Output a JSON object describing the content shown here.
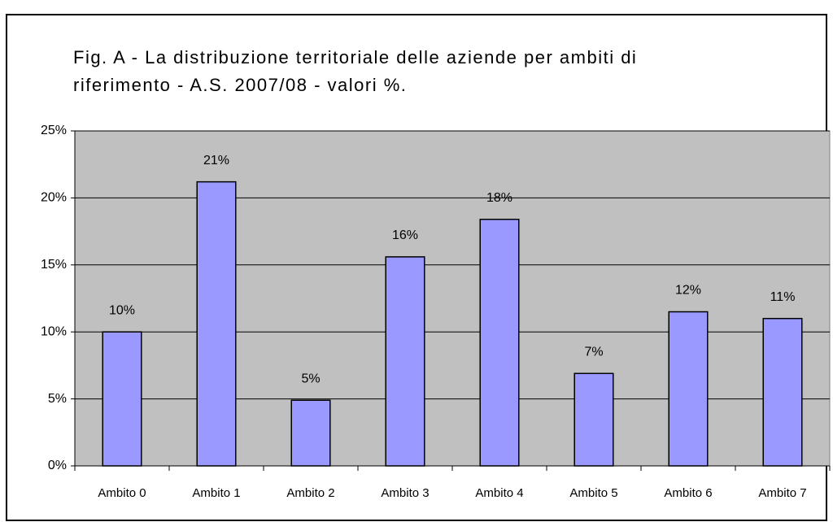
{
  "chart_data": {
    "type": "bar",
    "title": [
      "Fig. A - La distribuzione territoriale delle aziende per ambiti di",
      "riferimento - A.S. 2007/08 - valori %."
    ],
    "categories": [
      "Ambito 0",
      "Ambito 1",
      "Ambito 2",
      "Ambito 3",
      "Ambito 4",
      "Ambito 5",
      "Ambito 6",
      "Ambito 7"
    ],
    "values": [
      10.0,
      21.2,
      4.9,
      15.6,
      18.4,
      6.9,
      11.5,
      11.0
    ],
    "value_labels": [
      "10%",
      "21%",
      "5%",
      "16%",
      "18%",
      "7%",
      "12%",
      "11%"
    ],
    "color": "#9999ff",
    "ylim": [
      0,
      25
    ],
    "yticks": [
      {
        "value": 0,
        "label": "0%"
      },
      {
        "value": 5,
        "label": "5%"
      },
      {
        "value": 10,
        "label": "10%"
      },
      {
        "value": 15,
        "label": "15%"
      },
      {
        "value": 20,
        "label": "20%"
      },
      {
        "value": 25,
        "label": "25%"
      }
    ],
    "grid": true
  }
}
